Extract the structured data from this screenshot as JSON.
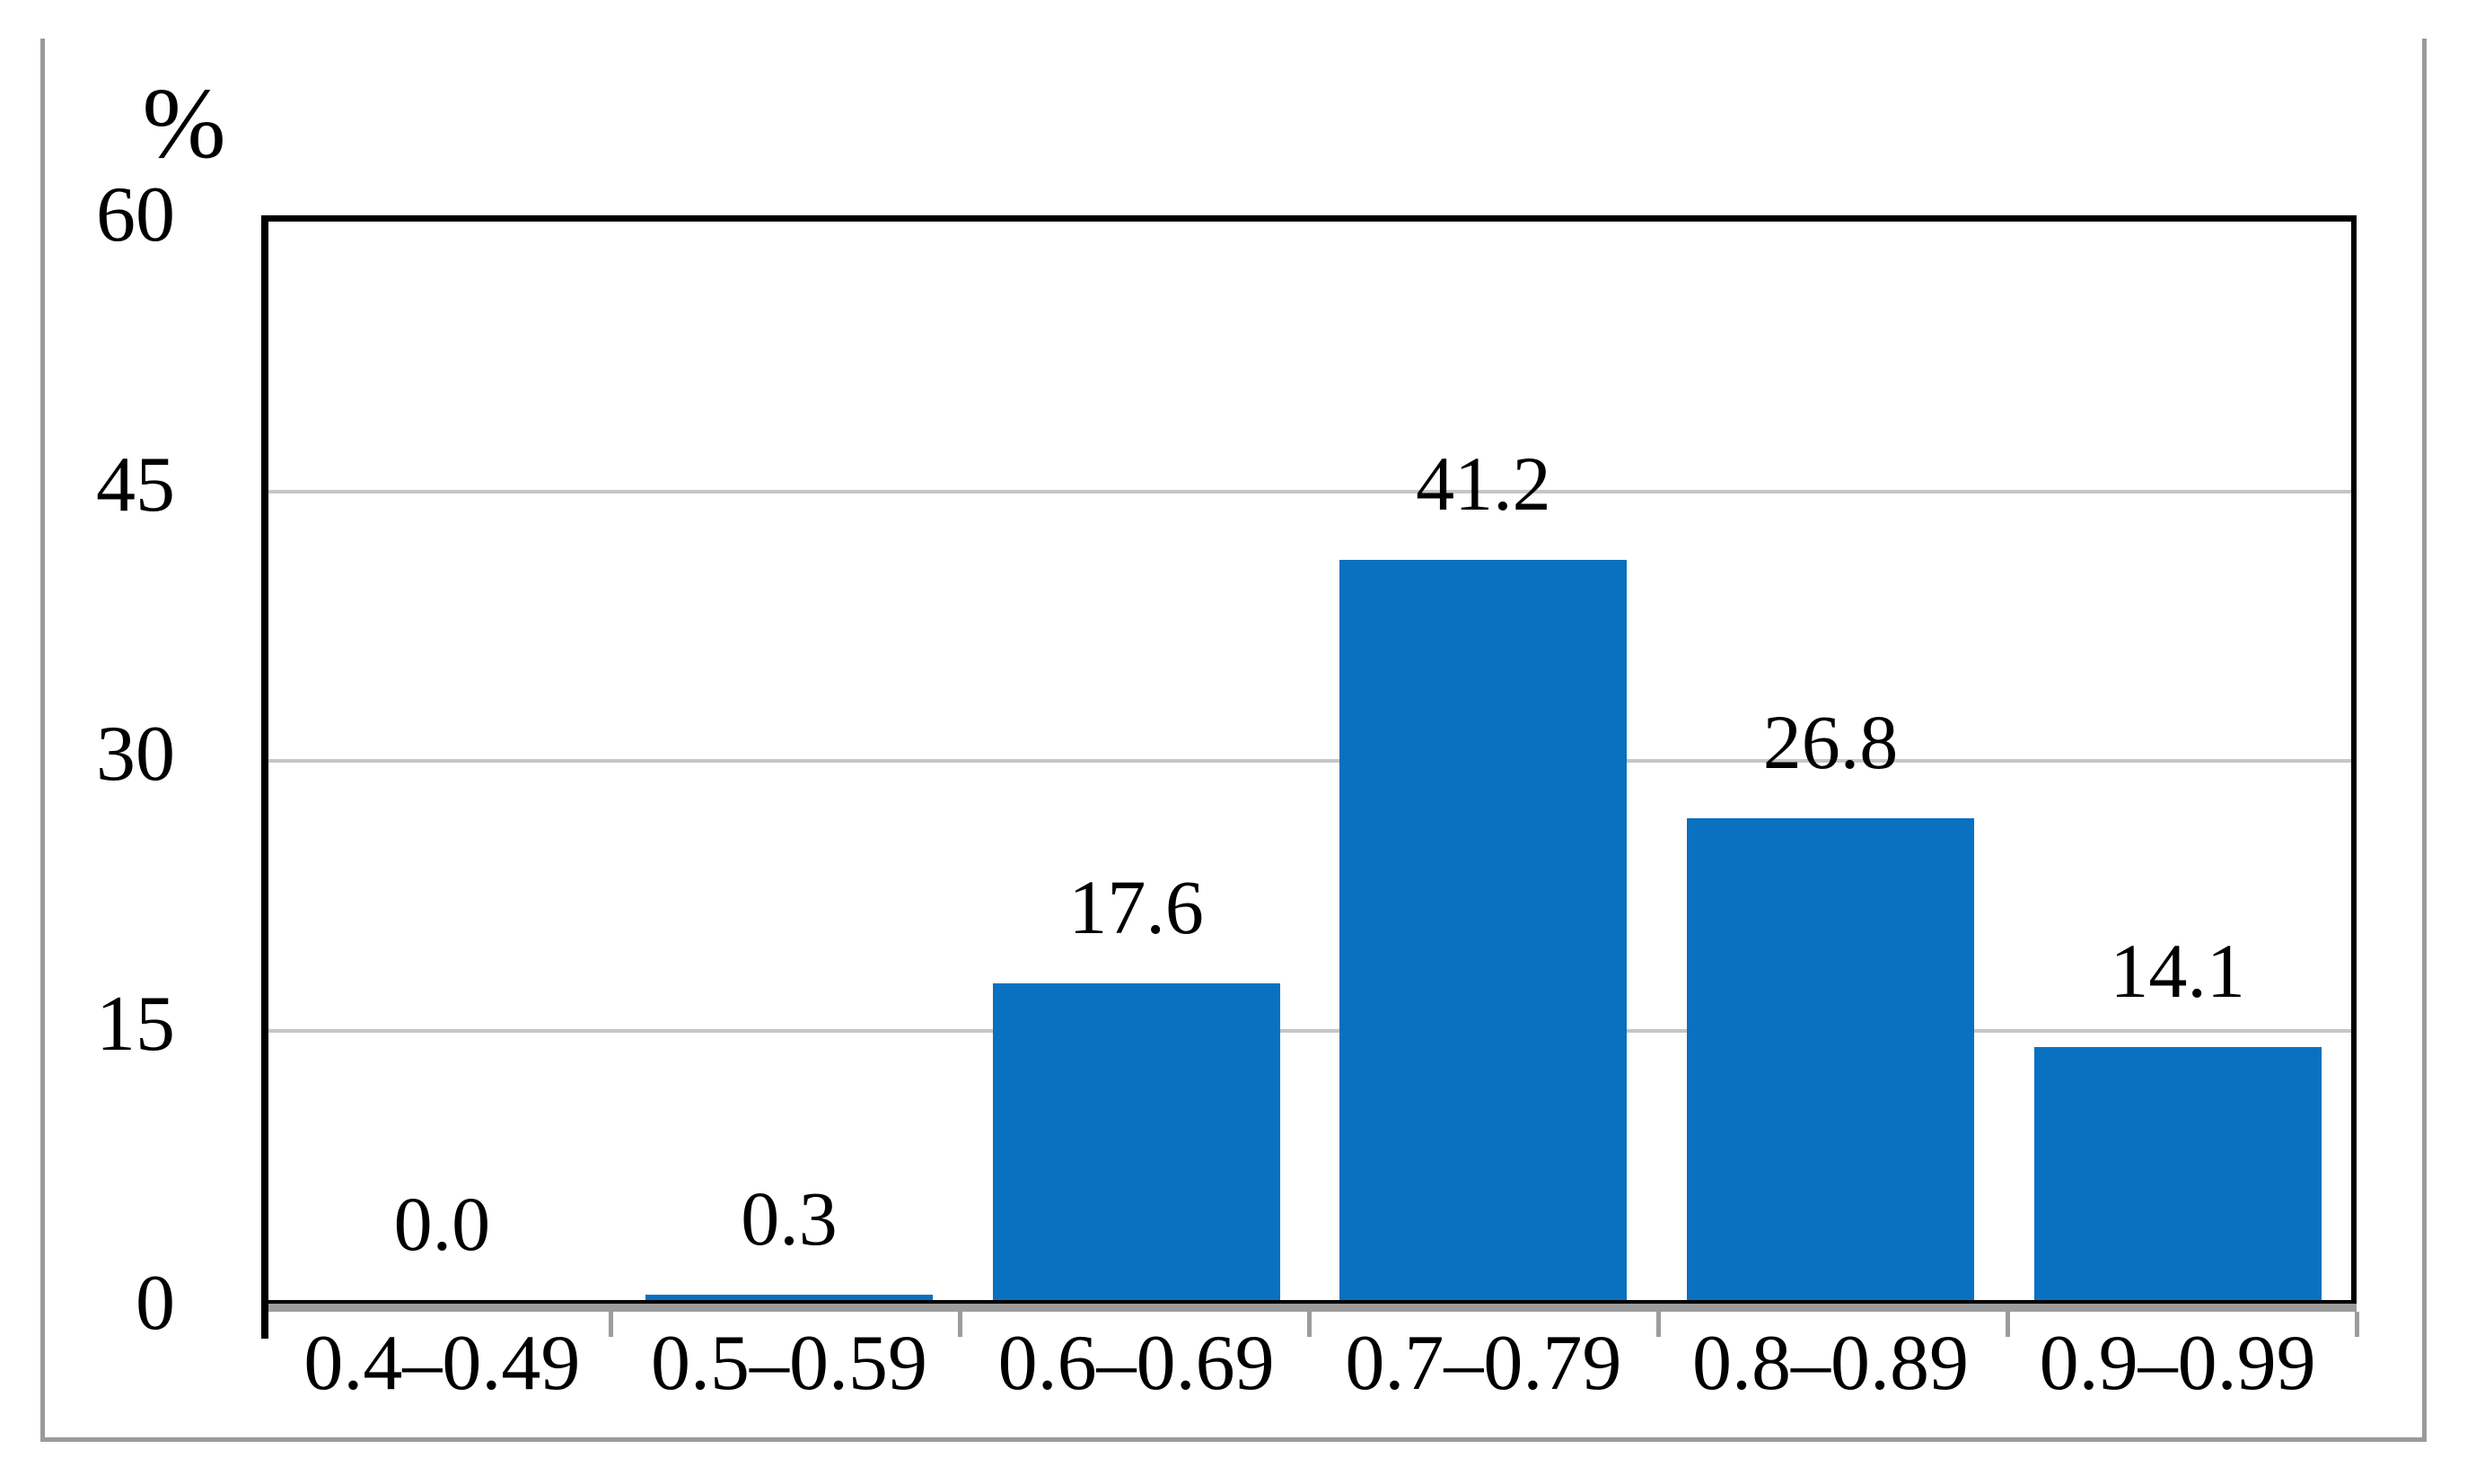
{
  "chart_data": {
    "type": "bar",
    "title": "",
    "xlabel": "",
    "ylabel": "%",
    "categories": [
      "0.4–0.49",
      "0.5–0.59",
      "0.6–0.69",
      "0.7–0.79",
      "0.8–0.89",
      "0.9–0.99"
    ],
    "values": [
      0.0,
      0.3,
      17.6,
      41.2,
      26.8,
      14.1
    ],
    "data_labels": [
      "0.0",
      "0.3",
      "17.6",
      "41.2",
      "26.8",
      "14.1"
    ],
    "yticks": [
      0,
      15,
      30,
      45,
      60
    ],
    "ytick_labels": [
      "0",
      "15",
      "30",
      "45",
      "60"
    ],
    "ylim": [
      0,
      60
    ],
    "gridline_values": [
      15,
      30,
      45
    ],
    "grid": true,
    "legend": "none",
    "colors": {
      "bar": "#0a70c0",
      "gridline": "#c6c6c6",
      "axis": "#000000",
      "tick": "#9c9c9c",
      "frame": "#9a9a9a",
      "text": "#000000",
      "background": "#ffffff"
    }
  }
}
